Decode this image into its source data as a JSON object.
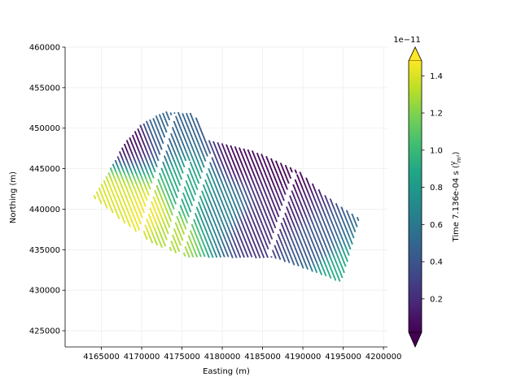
{
  "chart_data": {
    "type": "scatter",
    "title": "",
    "xlabel": "Easting (m)",
    "ylabel": "Northing (m)",
    "xlim": [
      4160500,
      4200500
    ],
    "ylim": [
      423000,
      460000
    ],
    "grid": true,
    "x_ticks": [
      4165000,
      4170000,
      4175000,
      4180000,
      4185000,
      4190000,
      4195000,
      4200000
    ],
    "y_ticks": [
      425000,
      430000,
      435000,
      440000,
      445000,
      450000,
      455000,
      460000
    ],
    "x_tick_labels": [
      "4165000",
      "4170000",
      "4175000",
      "4180000",
      "4185000",
      "4190000",
      "4195000",
      "4200000"
    ],
    "y_tick_labels": [
      "425000",
      "430000",
      "435000",
      "440000",
      "445000",
      "450000",
      "455000",
      "460000"
    ],
    "survey_outline": [
      [
        4164000,
        441500
      ],
      [
        4166000,
        444800
      ],
      [
        4168000,
        448300
      ],
      [
        4170000,
        450500
      ],
      [
        4172800,
        452000
      ],
      [
        4176500,
        451800
      ],
      [
        4178000,
        448500
      ],
      [
        4181500,
        447800
      ],
      [
        4185000,
        446800
      ],
      [
        4187800,
        445500
      ],
      [
        4189500,
        444700
      ],
      [
        4193000,
        441500
      ],
      [
        4197000,
        438800
      ],
      [
        4194800,
        431000
      ],
      [
        4186500,
        434000
      ],
      [
        4175500,
        434100
      ],
      [
        4171500,
        435700
      ],
      [
        4168000,
        438200
      ]
    ],
    "line_spacing_m": 450,
    "line_orientation_deg": 112,
    "gaps": [
      {
        "from": [
          4169800,
          436800
        ],
        "to": [
          4174000,
          451800
        ]
      },
      {
        "from": [
          4173000,
          434500
        ],
        "to": [
          4175800,
          446000
        ]
      },
      {
        "from": [
          4174800,
          434300
        ],
        "to": [
          4178500,
          446800
        ]
      },
      {
        "from": [
          4185800,
          434300
        ],
        "to": [
          4189000,
          444500
        ]
      }
    ],
    "value_field": {
      "description": "z = a + b*easting + c*northing (approximate trend)",
      "centers": [
        {
          "x": 4166000,
          "y": 441000,
          "v": 1.4
        },
        {
          "x": 4170500,
          "y": 439500,
          "v": 1.45
        },
        {
          "x": 4173500,
          "y": 436500,
          "v": 1.3
        },
        {
          "x": 4176000,
          "y": 442000,
          "v": 0.9
        },
        {
          "x": 4180000,
          "y": 440000,
          "v": 0.65
        },
        {
          "x": 4184000,
          "y": 437500,
          "v": 0.2
        },
        {
          "x": 4187500,
          "y": 440500,
          "v": 0.15
        },
        {
          "x": 4191500,
          "y": 435500,
          "v": 0.4
        },
        {
          "x": 4194000,
          "y": 432500,
          "v": 0.9
        },
        {
          "x": 4172000,
          "y": 450800,
          "v": 0.5
        },
        {
          "x": 4168500,
          "y": 449300,
          "v": 0.05
        },
        {
          "x": 4183000,
          "y": 446500,
          "v": 0.05
        },
        {
          "x": 4188000,
          "y": 444500,
          "v": 0.02
        }
      ]
    },
    "colorbar": {
      "label": "Time 7.136e-04 s (V/m²)",
      "label_prefix": "Time 7.136e-04 s (",
      "label_num": "V",
      "label_den": "m²",
      "label_suffix": ")",
      "multiplier": "1e−11",
      "min": 0.02,
      "max": 1.48,
      "ticks": [
        0.2,
        0.4,
        0.6,
        0.8,
        1.0,
        1.2,
        1.4
      ],
      "tick_labels": [
        "0.2",
        "0.4",
        "0.6",
        "0.8",
        "1.0",
        "1.2",
        "1.4"
      ],
      "colormap": "viridis",
      "extend": "both",
      "over_color": "#fde725",
      "under_color": "#440154"
    }
  }
}
